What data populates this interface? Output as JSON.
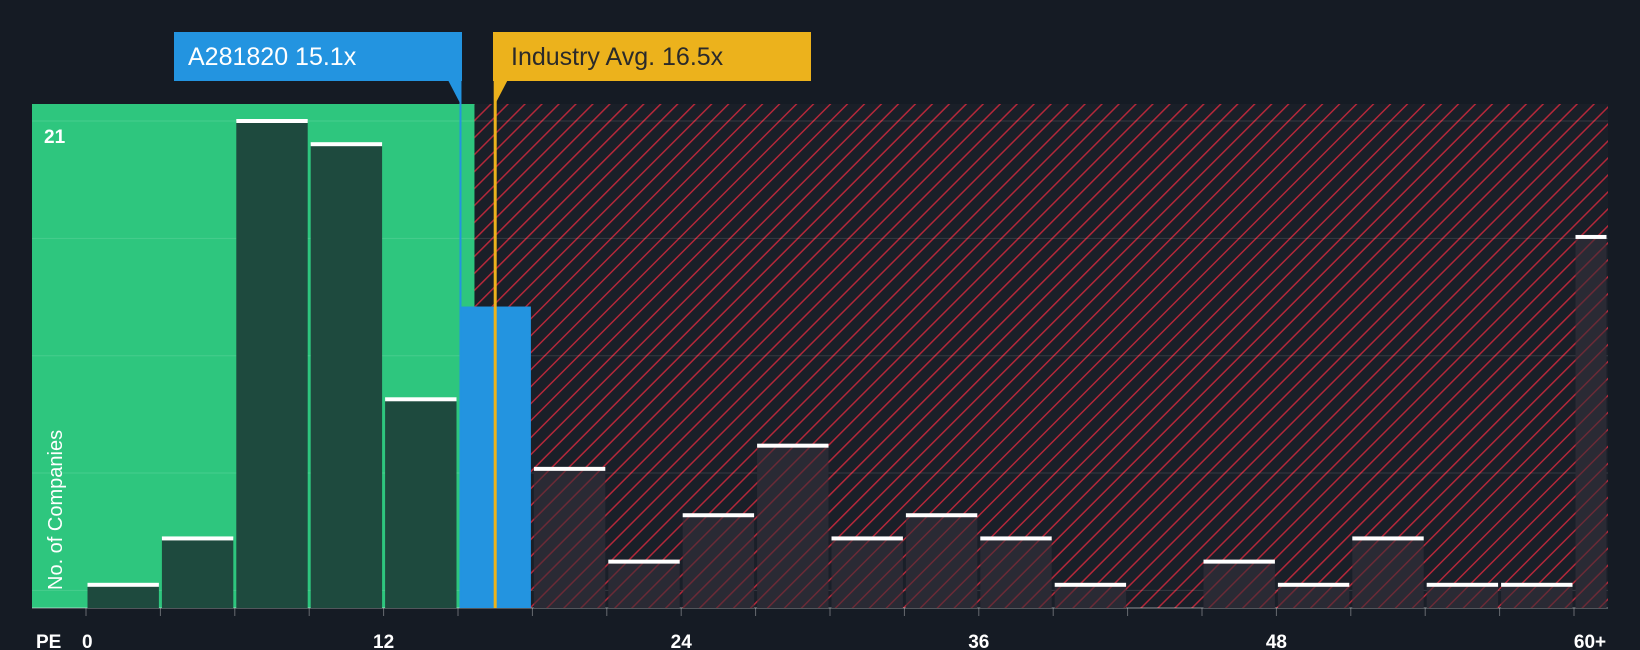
{
  "chart_data": {
    "type": "bar",
    "xlabel": "PE",
    "ylabel": "No. of Companies",
    "x_ticks": [
      "0",
      "12",
      "24",
      "36",
      "48",
      "60+"
    ],
    "y_ticks": [
      "21"
    ],
    "ylim": [
      0,
      21
    ],
    "bin_width": 3,
    "bins": [
      {
        "x0": 0,
        "x1": 3,
        "value": 1
      },
      {
        "x0": 3,
        "x1": 6,
        "value": 3
      },
      {
        "x0": 6,
        "x1": 9,
        "value": 21
      },
      {
        "x0": 9,
        "x1": 12,
        "value": 20
      },
      {
        "x0": 12,
        "x1": 15,
        "value": 9
      },
      {
        "x0": 15,
        "x1": 18,
        "value": 13
      },
      {
        "x0": 18,
        "x1": 21,
        "value": 6
      },
      {
        "x0": 21,
        "x1": 24,
        "value": 2
      },
      {
        "x0": 24,
        "x1": 27,
        "value": 4
      },
      {
        "x0": 27,
        "x1": 30,
        "value": 7
      },
      {
        "x0": 30,
        "x1": 33,
        "value": 3
      },
      {
        "x0": 33,
        "x1": 36,
        "value": 4
      },
      {
        "x0": 36,
        "x1": 39,
        "value": 3
      },
      {
        "x0": 39,
        "x1": 42,
        "value": 1
      },
      {
        "x0": 42,
        "x1": 45,
        "value": 0
      },
      {
        "x0": 45,
        "x1": 48,
        "value": 2
      },
      {
        "x0": 48,
        "x1": 51,
        "value": 1
      },
      {
        "x0": 51,
        "x1": 54,
        "value": 3
      },
      {
        "x0": 54,
        "x1": 57,
        "value": 1
      },
      {
        "x0": 57,
        "x1": 60,
        "value": 1
      },
      {
        "x0": 60,
        "x1": 63,
        "value": 16
      }
    ],
    "company": {
      "label": "A281820 15.1x",
      "pe": 15.1
    },
    "industry": {
      "label": "Industry Avg. 16.5x",
      "pe": 16.5
    },
    "colors": {
      "background": "#151b24",
      "undervalued_zone": "#2ec67e",
      "overvalued_zone": "#b3283a",
      "company": "#2394e0",
      "industry": "#ecb21c",
      "bar_fill": "#1e4a3e",
      "bar_cap": "#ffffff"
    }
  }
}
